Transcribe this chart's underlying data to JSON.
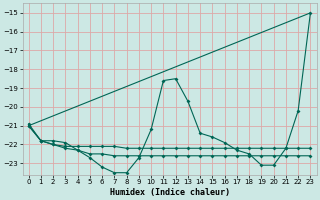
{
  "xlabel": "Humidex (Indice chaleur)",
  "background_color": "#cce8e4",
  "grid_color": "#dda8a8",
  "line_color": "#006655",
  "xlim": [
    -0.5,
    23.5
  ],
  "ylim": [
    -23.6,
    -14.5
  ],
  "yticks": [
    -23,
    -22,
    -21,
    -20,
    -19,
    -18,
    -17,
    -16,
    -15
  ],
  "xticks": [
    0,
    1,
    2,
    3,
    4,
    5,
    6,
    7,
    8,
    9,
    10,
    11,
    12,
    13,
    14,
    15,
    16,
    17,
    18,
    19,
    20,
    21,
    22,
    23
  ],
  "series": [
    {
      "x": [
        0,
        1,
        2,
        3,
        4,
        5,
        6,
        7,
        8,
        9,
        10,
        11,
        12,
        13,
        14,
        15,
        16,
        17,
        18,
        19,
        20,
        21,
        22,
        23
      ],
      "y": [
        -20.9,
        -21.8,
        -21.8,
        -21.9,
        -22.3,
        -22.7,
        -23.2,
        -23.5,
        -23.5,
        -22.7,
        -21.2,
        -18.6,
        -18.5,
        -19.7,
        -21.4,
        -21.6,
        -21.9,
        -22.3,
        -22.5,
        -23.1,
        -23.1,
        -22.2,
        -20.2,
        -15.0
      ]
    },
    {
      "x": [
        0,
        23
      ],
      "y": [
        -21.0,
        -15.0
      ]
    },
    {
      "x": [
        0,
        1,
        2,
        3,
        4,
        5,
        6,
        7,
        8,
        9,
        10,
        11,
        12,
        13,
        14,
        15,
        16,
        17,
        18,
        19,
        20,
        21,
        22,
        23
      ],
      "y": [
        -21.0,
        -21.8,
        -22.0,
        -22.1,
        -22.1,
        -22.1,
        -22.1,
        -22.1,
        -22.2,
        -22.2,
        -22.2,
        -22.2,
        -22.2,
        -22.2,
        -22.2,
        -22.2,
        -22.2,
        -22.2,
        -22.2,
        -22.2,
        -22.2,
        -22.2,
        -22.2,
        -22.2
      ]
    },
    {
      "x": [
        0,
        1,
        2,
        3,
        4,
        5,
        6,
        7,
        8,
        9,
        10,
        11,
        12,
        13,
        14,
        15,
        16,
        17,
        18,
        19,
        20,
        21,
        22,
        23
      ],
      "y": [
        -21.0,
        -21.8,
        -22.0,
        -22.2,
        -22.3,
        -22.5,
        -22.5,
        -22.6,
        -22.6,
        -22.6,
        -22.6,
        -22.6,
        -22.6,
        -22.6,
        -22.6,
        -22.6,
        -22.6,
        -22.6,
        -22.6,
        -22.6,
        -22.6,
        -22.6,
        -22.6,
        -22.6
      ]
    }
  ]
}
